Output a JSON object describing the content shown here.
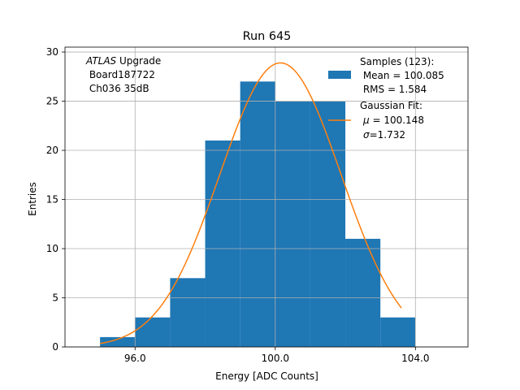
{
  "chart_data": {
    "type": "bar",
    "title": "Run 645",
    "xlabel": "Energy [ADC Counts]",
    "ylabel": "Entries",
    "xlim": [
      94.0,
      105.5
    ],
    "ylim": [
      0,
      30.5
    ],
    "xticks": [
      96.0,
      100.0,
      104.0
    ],
    "xtick_labels": [
      "96.0",
      "100.0",
      "104.0"
    ],
    "yticks": [
      0,
      5,
      10,
      15,
      20,
      25,
      30
    ],
    "ytick_labels": [
      "0",
      "5",
      "10",
      "15",
      "20",
      "25",
      "30"
    ],
    "grid": true,
    "legend_position": "top-right",
    "bins": [
      {
        "x0": 95,
        "x1": 96,
        "count": 1
      },
      {
        "x0": 96,
        "x1": 97,
        "count": 3
      },
      {
        "x0": 97,
        "x1": 98,
        "count": 7
      },
      {
        "x0": 98,
        "x1": 99,
        "count": 21
      },
      {
        "x0": 99,
        "x1": 100,
        "count": 27
      },
      {
        "x0": 100,
        "x1": 101,
        "count": 25
      },
      {
        "x0": 101,
        "x1": 102,
        "count": 25
      },
      {
        "x0": 102,
        "x1": 103,
        "count": 11
      },
      {
        "x0": 103,
        "x1": 104,
        "count": 3
      }
    ],
    "fit": {
      "type": "gaussian",
      "mu": 100.148,
      "sigma": 1.732,
      "amplitude": 28.9,
      "x_range": [
        95.0,
        103.6
      ]
    },
    "annotation": {
      "line1_italic": "ATLAS",
      "line1_rest": " Upgrade",
      "line2": " Board187722",
      "line3": " Ch036 35dB"
    },
    "legend": {
      "samples_title": "Samples (123):",
      "samples_mean": " Mean = 100.085",
      "samples_rms": " RMS = 1.584",
      "fit_title": "Gaussian Fit:",
      "fit_mu": "$\\mu$ = 100.148",
      "fit_sigma": "$\\sigma$=1.732"
    },
    "colors": {
      "bar": "#1f77b4",
      "fit": "#ff7f0e",
      "grid": "#b0b0b0"
    }
  }
}
